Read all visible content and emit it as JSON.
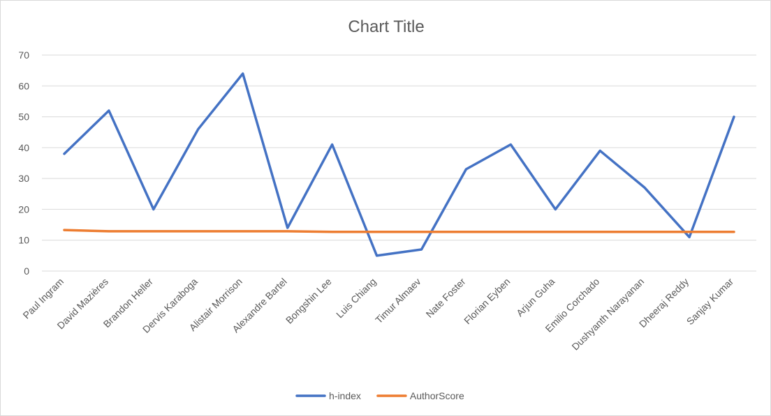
{
  "chart_data": {
    "type": "line",
    "title": "Chart Title",
    "xlabel": "",
    "ylabel": "",
    "ylim": [
      0,
      70
    ],
    "yticks": [
      0,
      10,
      20,
      30,
      40,
      50,
      60,
      70
    ],
    "grid": true,
    "legend_position": "bottom",
    "categories": [
      "Paul Ingram",
      "David Mazières",
      "Brandon Heller",
      "Dervis Karaboga",
      "Alistair Morrison",
      "Alexandre Bartel",
      "Bongshin Lee",
      "Luis Chiang",
      "Timur Almaev",
      "Nate Foster",
      "Florian Eyben",
      "Arjun Guha",
      "Emilio Corchado",
      "Dushyanth Narayanan",
      "Dheeraj Reddy",
      "Sanjay Kumar"
    ],
    "series": [
      {
        "name": "h-index",
        "color": "#4472c4",
        "values": [
          38,
          52,
          20,
          46,
          64,
          14,
          41,
          5,
          7,
          33,
          41,
          20,
          39,
          27,
          11,
          50
        ]
      },
      {
        "name": "AuthorScore",
        "color": "#ed7d31",
        "values": [
          13.3,
          12.9,
          12.9,
          12.9,
          12.9,
          12.9,
          12.7,
          12.7,
          12.7,
          12.7,
          12.7,
          12.7,
          12.7,
          12.7,
          12.7,
          12.7
        ]
      }
    ]
  }
}
